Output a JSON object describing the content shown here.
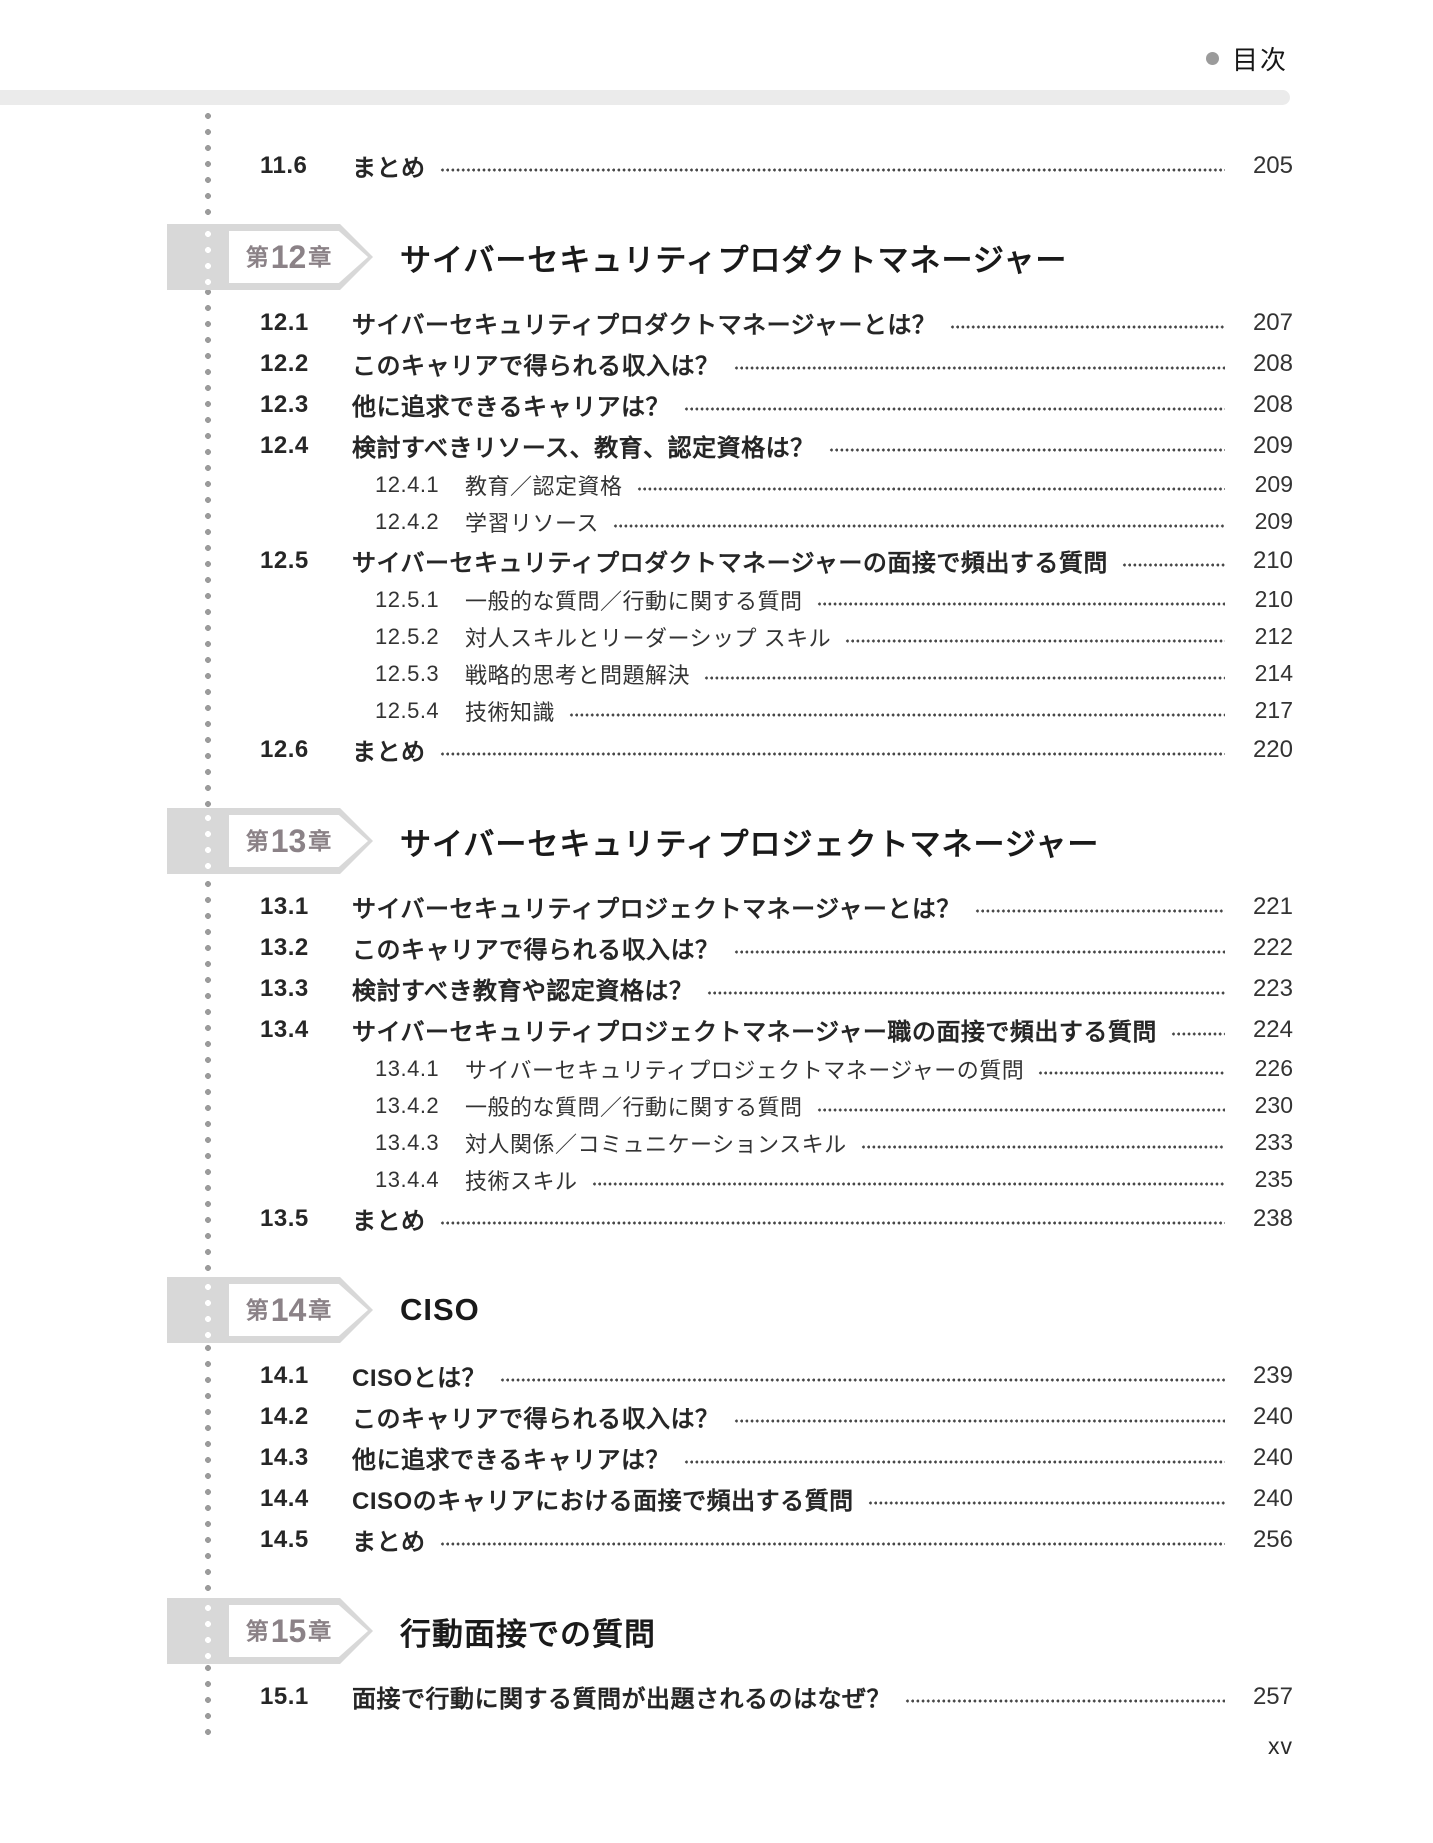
{
  "page": {
    "header_label": "目次",
    "footer_page_number": "xv"
  },
  "colors": {
    "badge_bg": "#d8d8d8",
    "badge_text": "#8b8287",
    "header_bar": "#ebebeb",
    "dotted_rule": "#9b9b9b",
    "leader_dots": "#474747"
  },
  "leading_entries": [
    {
      "num": "11.6",
      "title": "まとめ",
      "page": "205"
    }
  ],
  "chapters": [
    {
      "badge": {
        "prefix": "第",
        "number": "12",
        "suffix": "章"
      },
      "title": "サイバーセキュリティプロダクトマネージャー",
      "entries": [
        {
          "num": "12.1",
          "title": "サイバーセキュリティプロダクトマネージャーとは？",
          "page": "207"
        },
        {
          "num": "12.2",
          "title": "このキャリアで得られる収入は？",
          "page": "208"
        },
        {
          "num": "12.3",
          "title": "他に追求できるキャリアは？",
          "page": "208"
        },
        {
          "num": "12.4",
          "title": "検討すべきリソース、教育、認定資格は？",
          "page": "209"
        },
        {
          "num": "12.4.1",
          "title": "教育／認定資格",
          "page": "209"
        },
        {
          "num": "12.4.2",
          "title": "学習リソース",
          "page": "209"
        },
        {
          "num": "12.5",
          "title": "サイバーセキュリティプロダクトマネージャーの面接で頻出する質問",
          "page": "210"
        },
        {
          "num": "12.5.1",
          "title": "一般的な質問／行動に関する質問",
          "page": "210"
        },
        {
          "num": "12.5.2",
          "title": "対人スキルとリーダーシップ スキル",
          "page": "212"
        },
        {
          "num": "12.5.3",
          "title": "戦略的思考と問題解決",
          "page": "214"
        },
        {
          "num": "12.5.4",
          "title": "技術知識",
          "page": "217"
        },
        {
          "num": "12.6",
          "title": "まとめ",
          "page": "220"
        }
      ]
    },
    {
      "badge": {
        "prefix": "第",
        "number": "13",
        "suffix": "章"
      },
      "title": "サイバーセキュリティプロジェクトマネージャー",
      "entries": [
        {
          "num": "13.1",
          "title": "サイバーセキュリティプロジェクトマネージャーとは？",
          "page": "221"
        },
        {
          "num": "13.2",
          "title": "このキャリアで得られる収入は？",
          "page": "222"
        },
        {
          "num": "13.3",
          "title": "検討すべき教育や認定資格は？",
          "page": "223"
        },
        {
          "num": "13.4",
          "title": "サイバーセキュリティプロジェクトマネージャー職の面接で頻出する質問",
          "page": "224"
        },
        {
          "num": "13.4.1",
          "title": "サイバーセキュリティプロジェクトマネージャーの質問",
          "page": "226"
        },
        {
          "num": "13.4.2",
          "title": "一般的な質問／行動に関する質問",
          "page": "230"
        },
        {
          "num": "13.4.3",
          "title": "対人関係／コミュニケーションスキル",
          "page": "233"
        },
        {
          "num": "13.4.4",
          "title": "技術スキル",
          "page": "235"
        },
        {
          "num": "13.5",
          "title": "まとめ",
          "page": "238"
        }
      ]
    },
    {
      "badge": {
        "prefix": "第",
        "number": "14",
        "suffix": "章"
      },
      "title": "CISO",
      "entries": [
        {
          "num": "14.1",
          "title": "CISOとは？",
          "page": "239"
        },
        {
          "num": "14.2",
          "title": "このキャリアで得られる収入は？",
          "page": "240"
        },
        {
          "num": "14.3",
          "title": "他に追求できるキャリアは？",
          "page": "240"
        },
        {
          "num": "14.4",
          "title": "CISOのキャリアにおける面接で頻出する質問",
          "page": "240"
        },
        {
          "num": "14.5",
          "title": "まとめ",
          "page": "256"
        }
      ]
    },
    {
      "badge": {
        "prefix": "第",
        "number": "15",
        "suffix": "章"
      },
      "title": "行動面接での質問",
      "entries": [
        {
          "num": "15.1",
          "title": "面接で行動に関する質問が出題されるのはなぜ？",
          "page": "257"
        }
      ]
    }
  ]
}
